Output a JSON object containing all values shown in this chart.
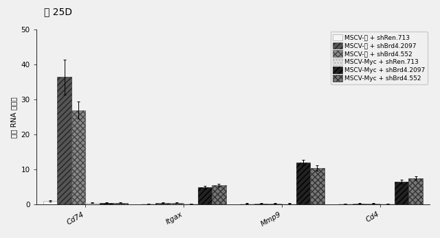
{
  "title": "図 25D",
  "ylabel": "相対 RNA レベル",
  "categories": [
    "Cd74",
    "Itgax",
    "Mmp9",
    "Cd4"
  ],
  "series": [
    {
      "label": "MSCV-空 + shRen.713",
      "values": [
        1.0,
        0.2,
        0.3,
        0.2
      ],
      "errors": [
        0.2,
        0.05,
        0.05,
        0.05
      ],
      "hatch": "",
      "facecolor": "#f5f5f5",
      "edgecolor": "#999999"
    },
    {
      "label": "MSCV-空 + shBrd4.2097",
      "values": [
        36.5,
        0.5,
        0.3,
        0.3
      ],
      "errors": [
        5.0,
        0.05,
        0.05,
        0.05
      ],
      "hatch": "////",
      "facecolor": "#555555",
      "edgecolor": "#222222"
    },
    {
      "label": "MSCV-空 + shBrd4.552",
      "values": [
        27.0,
        0.5,
        0.3,
        0.3
      ],
      "errors": [
        2.5,
        0.05,
        0.05,
        0.05
      ],
      "hatch": "xxxx",
      "facecolor": "#888888",
      "edgecolor": "#444444"
    },
    {
      "label": "MSCV-Myc + shRen.713",
      "values": [
        0.5,
        0.2,
        0.3,
        0.2
      ],
      "errors": [
        0.05,
        0.05,
        0.05,
        0.05
      ],
      "hatch": "....",
      "facecolor": "#e0e0e0",
      "edgecolor": "#aaaaaa"
    },
    {
      "label": "MSCV-Myc + shBrd4.2097",
      "values": [
        0.5,
        5.0,
        12.0,
        6.5
      ],
      "errors": [
        0.05,
        0.4,
        0.7,
        0.5
      ],
      "hatch": "////",
      "facecolor": "#222222",
      "edgecolor": "#000000"
    },
    {
      "label": "MSCV-Myc + shBrd4.552",
      "values": [
        0.5,
        5.5,
        10.5,
        7.5
      ],
      "errors": [
        0.05,
        0.4,
        0.8,
        0.5
      ],
      "hatch": "xxxx",
      "facecolor": "#777777",
      "edgecolor": "#333333"
    }
  ],
  "ylim": [
    0,
    50
  ],
  "yticks": [
    0,
    10,
    20,
    30,
    40,
    50
  ],
  "bar_width": 0.1,
  "group_positions": [
    0.35,
    1.05,
    1.75,
    2.45
  ],
  "background_color": "#f0f0f0",
  "plot_bg": "#f0f0f0",
  "legend_fontsize": 6.5,
  "axis_fontsize": 7.5,
  "tick_fontsize": 7.5,
  "title_fontsize": 10
}
